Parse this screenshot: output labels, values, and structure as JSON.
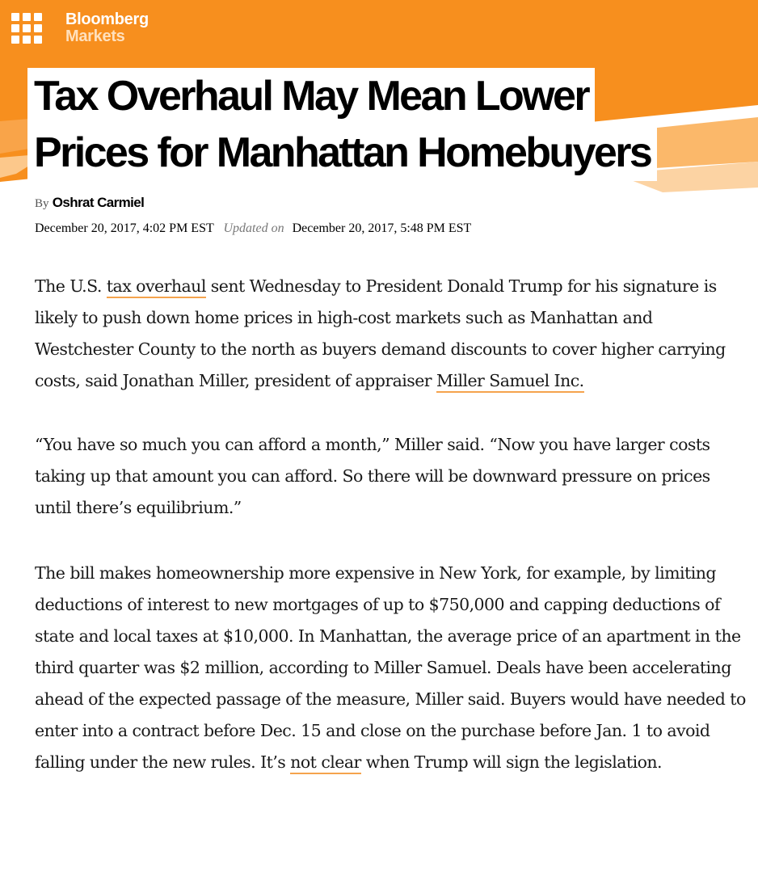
{
  "header": {
    "brand_name": "Bloomberg",
    "section": "Markets",
    "brand_color": "#f78f1e",
    "logo_icon": "bloomberg-grid-icon"
  },
  "article": {
    "headline_line1": "Tax Overhaul May Mean Lower",
    "headline_line2": "Prices for Manhattan Homebuyers",
    "byline_prefix": "By",
    "author": "Oshrat Carmiel",
    "published": "December 20, 2017, 4:02 PM EST",
    "updated_label": "Updated on",
    "updated": "December 20, 2017, 5:48 PM EST",
    "p1": {
      "pre": "The U.S. ",
      "link1": "tax overhaul",
      "mid": " sent Wednesday to President Donald Trump for his signature is likely to push down home prices in high-cost markets such as Manhattan and Westchester County to the north as buyers demand discounts to cover higher carrying costs, said Jonathan Miller, president of appraiser ",
      "link2": "Miller Samuel Inc.",
      "post": ""
    },
    "p2": "“You have so much you can afford a month,” Miller said. “Now you have larger costs taking up that amount you can afford. So there will be downward pressure on prices until there’s equilibrium.”",
    "p3": {
      "pre": "The bill makes homeownership more expensive in New York, for example, by limiting deductions of interest to new mortgages of up to $750,000 and capping deductions of state and local taxes at $10,000. In Manhattan, the average price of an apartment in the third quarter was $2 million, according to Miller Samuel. Deals have been accelerating ahead of the expected passage of the measure, Miller said. Buyers would have needed to enter into a contract before Dec. 15 and close on the purchase before Jan. 1 to avoid falling under the new rules. It’s ",
      "link": "not clear",
      "post": " when Trump will sign the legislation."
    },
    "link_underline_color": "#f5a34d"
  }
}
